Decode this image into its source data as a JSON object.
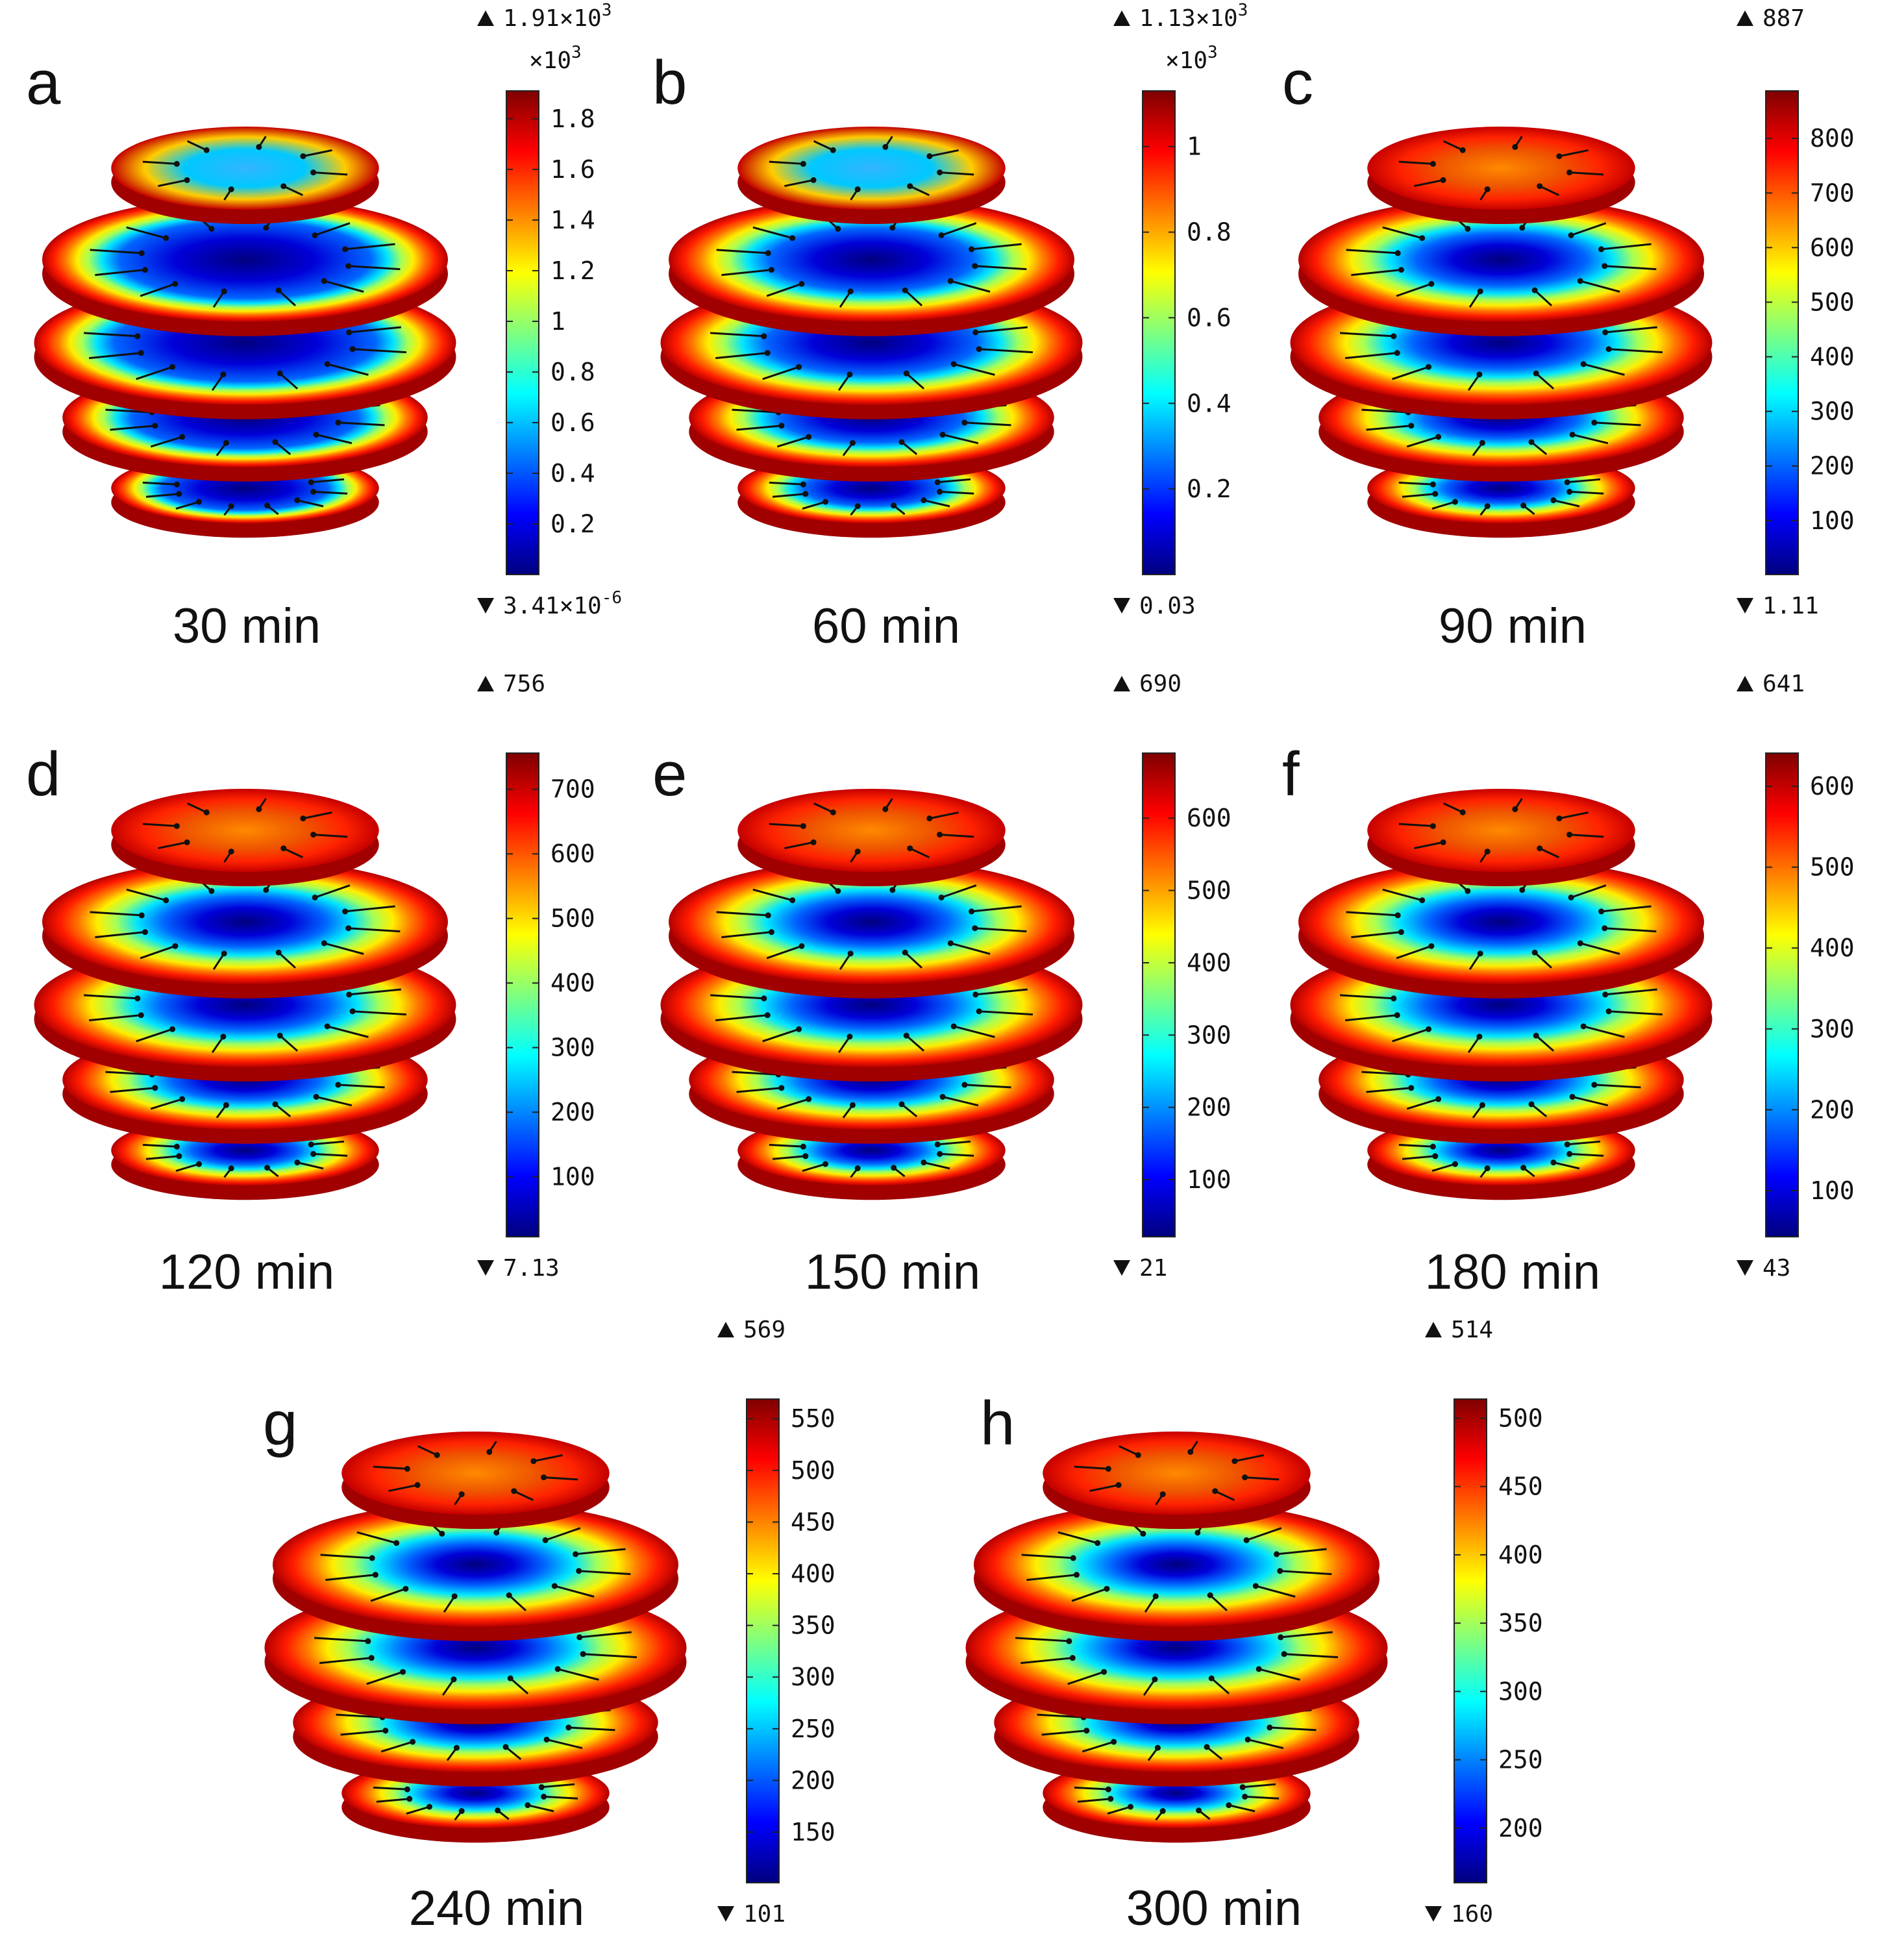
{
  "colormap": [
    "#00007f",
    "#0000ff",
    "#007fff",
    "#00ffff",
    "#7fff7f",
    "#ffff00",
    "#ff7f00",
    "#ff0000",
    "#7f0000"
  ],
  "panels": [
    {
      "label": "a",
      "time": "30 min",
      "max_label": "1.91×10",
      "max_exp": "3",
      "min_label": "3.41×10",
      "min_exp": "-6",
      "scale": "×10",
      "scale_exp": "3",
      "ticks": [
        "1.8",
        "1.6",
        "1.4",
        "1.2",
        "1",
        "0.8",
        "0.6",
        "0.4",
        "0.2"
      ],
      "tick_values": [
        1.8,
        1.6,
        1.4,
        1.2,
        1.0,
        0.8,
        0.6,
        0.4,
        0.2
      ],
      "range": [
        0.0,
        1.91
      ],
      "core": 0.62
    },
    {
      "label": "b",
      "time": "60 min",
      "max_label": "1.13×10",
      "max_exp": "3",
      "min_label": "0.03",
      "min_exp": "",
      "scale": "×10",
      "scale_exp": "3",
      "ticks": [
        "1",
        "0.8",
        "0.6",
        "0.4",
        "0.2"
      ],
      "tick_values": [
        1.0,
        0.8,
        0.6,
        0.4,
        0.2
      ],
      "range": [
        0.0,
        1.13
      ],
      "core": 0.5
    },
    {
      "label": "c",
      "time": "90 min",
      "max_label": "887",
      "max_exp": "",
      "min_label": "1.11",
      "min_exp": "",
      "scale": "",
      "scale_exp": "",
      "ticks": [
        "800",
        "700",
        "600",
        "500",
        "400",
        "300",
        "200",
        "100"
      ],
      "tick_values": [
        800,
        700,
        600,
        500,
        400,
        300,
        200,
        100
      ],
      "range": [
        1.11,
        887
      ],
      "core": 0.42
    },
    {
      "label": "d",
      "time": "120 min",
      "max_label": "756",
      "max_exp": "",
      "min_label": "7.13",
      "min_exp": "",
      "scale": "",
      "scale_exp": "",
      "ticks": [
        "700",
        "600",
        "500",
        "400",
        "300",
        "200",
        "100"
      ],
      "tick_values": [
        700,
        600,
        500,
        400,
        300,
        200,
        100
      ],
      "range": [
        7.13,
        756
      ],
      "core": 0.4
    },
    {
      "label": "e",
      "time": "150 min",
      "max_label": "690",
      "max_exp": "",
      "min_label": "21",
      "min_exp": "",
      "scale": "",
      "scale_exp": "",
      "ticks": [
        "600",
        "500",
        "400",
        "300",
        "200",
        "100"
      ],
      "tick_values": [
        600,
        500,
        400,
        300,
        200,
        100
      ],
      "range": [
        21,
        690
      ],
      "core": 0.38
    },
    {
      "label": "f",
      "time": "180 min",
      "max_label": "641",
      "max_exp": "",
      "min_label": "43",
      "min_exp": "",
      "scale": "",
      "scale_exp": "",
      "ticks": [
        "600",
        "500",
        "400",
        "300",
        "200",
        "100"
      ],
      "tick_values": [
        600,
        500,
        400,
        300,
        200,
        100
      ],
      "range": [
        43,
        641
      ],
      "core": 0.36
    },
    {
      "label": "g",
      "time": "240 min",
      "max_label": "569",
      "max_exp": "",
      "min_label": "101",
      "min_exp": "",
      "scale": "",
      "scale_exp": "",
      "ticks": [
        "550",
        "500",
        "450",
        "400",
        "350",
        "300",
        "250",
        "200",
        "150"
      ],
      "tick_values": [
        550,
        500,
        450,
        400,
        350,
        300,
        250,
        200,
        150
      ],
      "range": [
        101,
        569
      ],
      "core": 0.34
    },
    {
      "label": "h",
      "time": "300 min",
      "max_label": "514",
      "max_exp": "",
      "min_label": "160",
      "min_exp": "",
      "scale": "",
      "scale_exp": "",
      "ticks": [
        "500",
        "450",
        "400",
        "350",
        "300",
        "250",
        "200"
      ],
      "tick_values": [
        500,
        450,
        400,
        350,
        300,
        250,
        200
      ],
      "range": [
        160,
        514
      ],
      "core": 0.32
    }
  ]
}
